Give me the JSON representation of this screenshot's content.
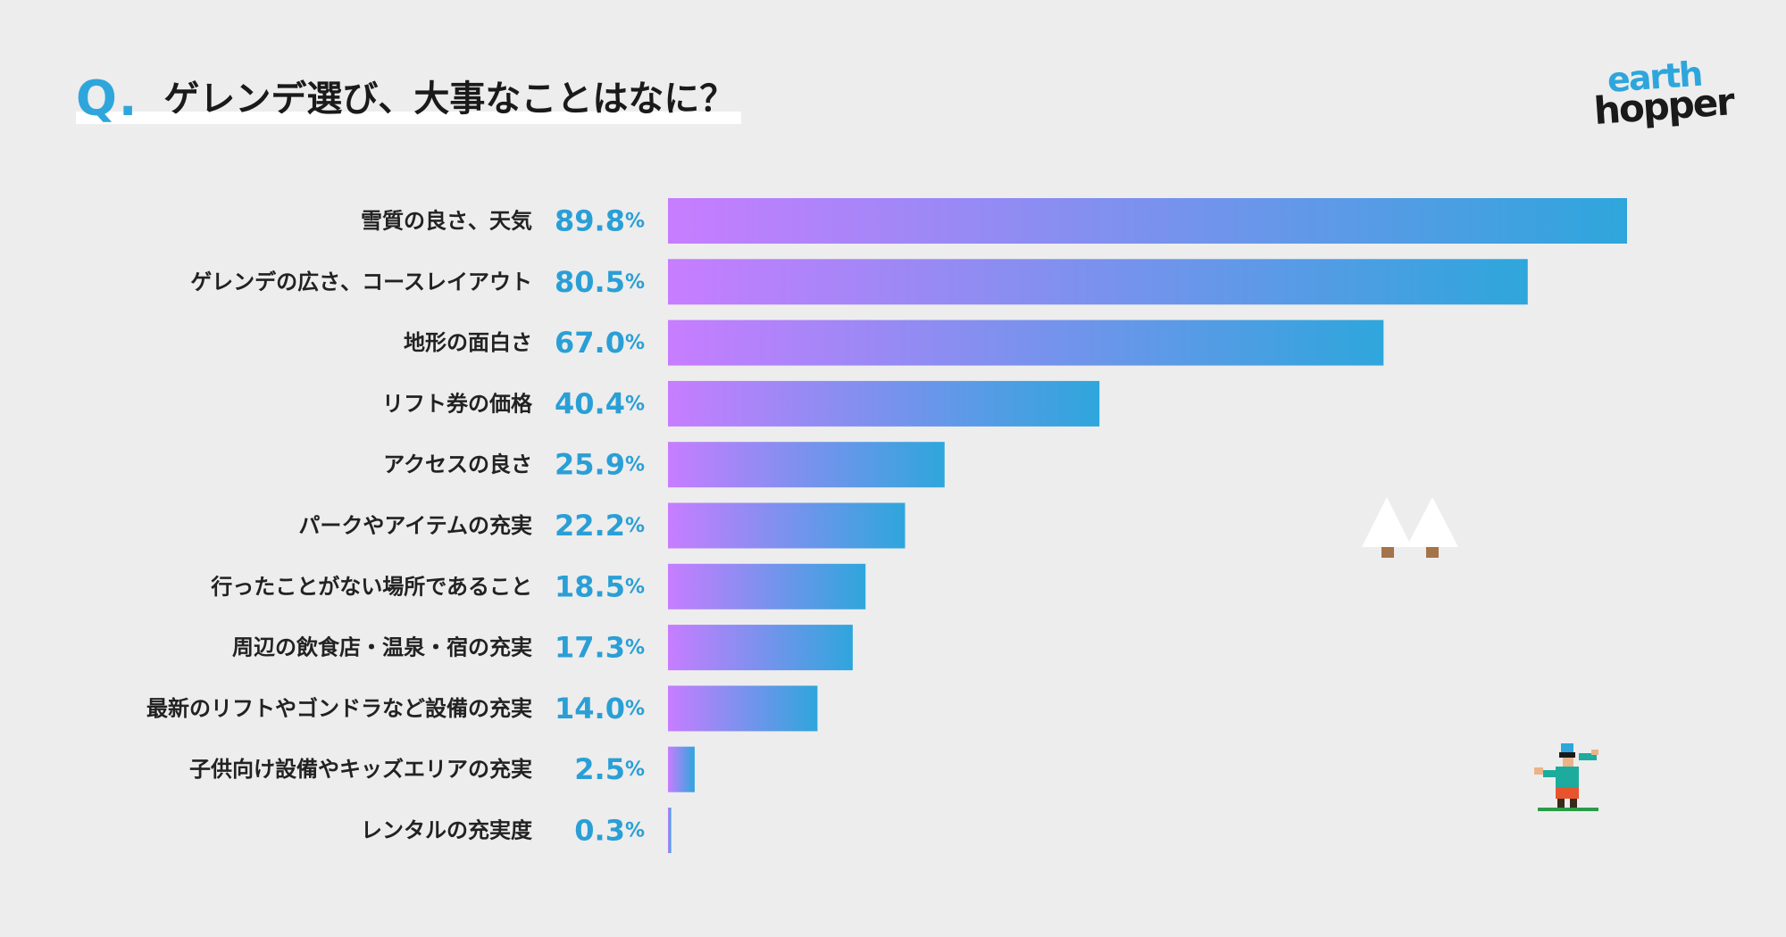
{
  "title": {
    "q": "Q.",
    "text": "ゲレンデ選び、大事なことはなに？"
  },
  "logo": {
    "line1": "earth",
    "line2": "hopper"
  },
  "colors": {
    "accent": "#2ea6dc",
    "bar_start": "#c77dff",
    "bar_end": "#2ea6dc",
    "background": "#ededed"
  },
  "chart_data": {
    "type": "bar",
    "orientation": "horizontal",
    "categories": [
      "雪質の良さ、天気",
      "ゲレンデの広さ、コースレイアウト",
      "地形の面白さ",
      "リフト券の価格",
      "アクセスの良さ",
      "パークやアイテムの充実",
      "行ったことがない場所であること",
      "周辺の飲食店・温泉・宿の充実",
      "最新のリフトやゴンドラなど設備の充実",
      "子供向け設備やキッズエリアの充実",
      "レンタルの充実度"
    ],
    "values": [
      89.8,
      80.5,
      67.0,
      40.4,
      25.9,
      22.2,
      18.5,
      17.3,
      14.0,
      2.5,
      0.3
    ],
    "value_labels": [
      "89.8",
      "80.5",
      "67.0",
      "40.4",
      "25.9",
      "22.2",
      "18.5",
      "17.3",
      "14.0",
      "2.5",
      "0.3"
    ],
    "unit": "%",
    "xlim": [
      0,
      89.8
    ],
    "grid": false
  }
}
